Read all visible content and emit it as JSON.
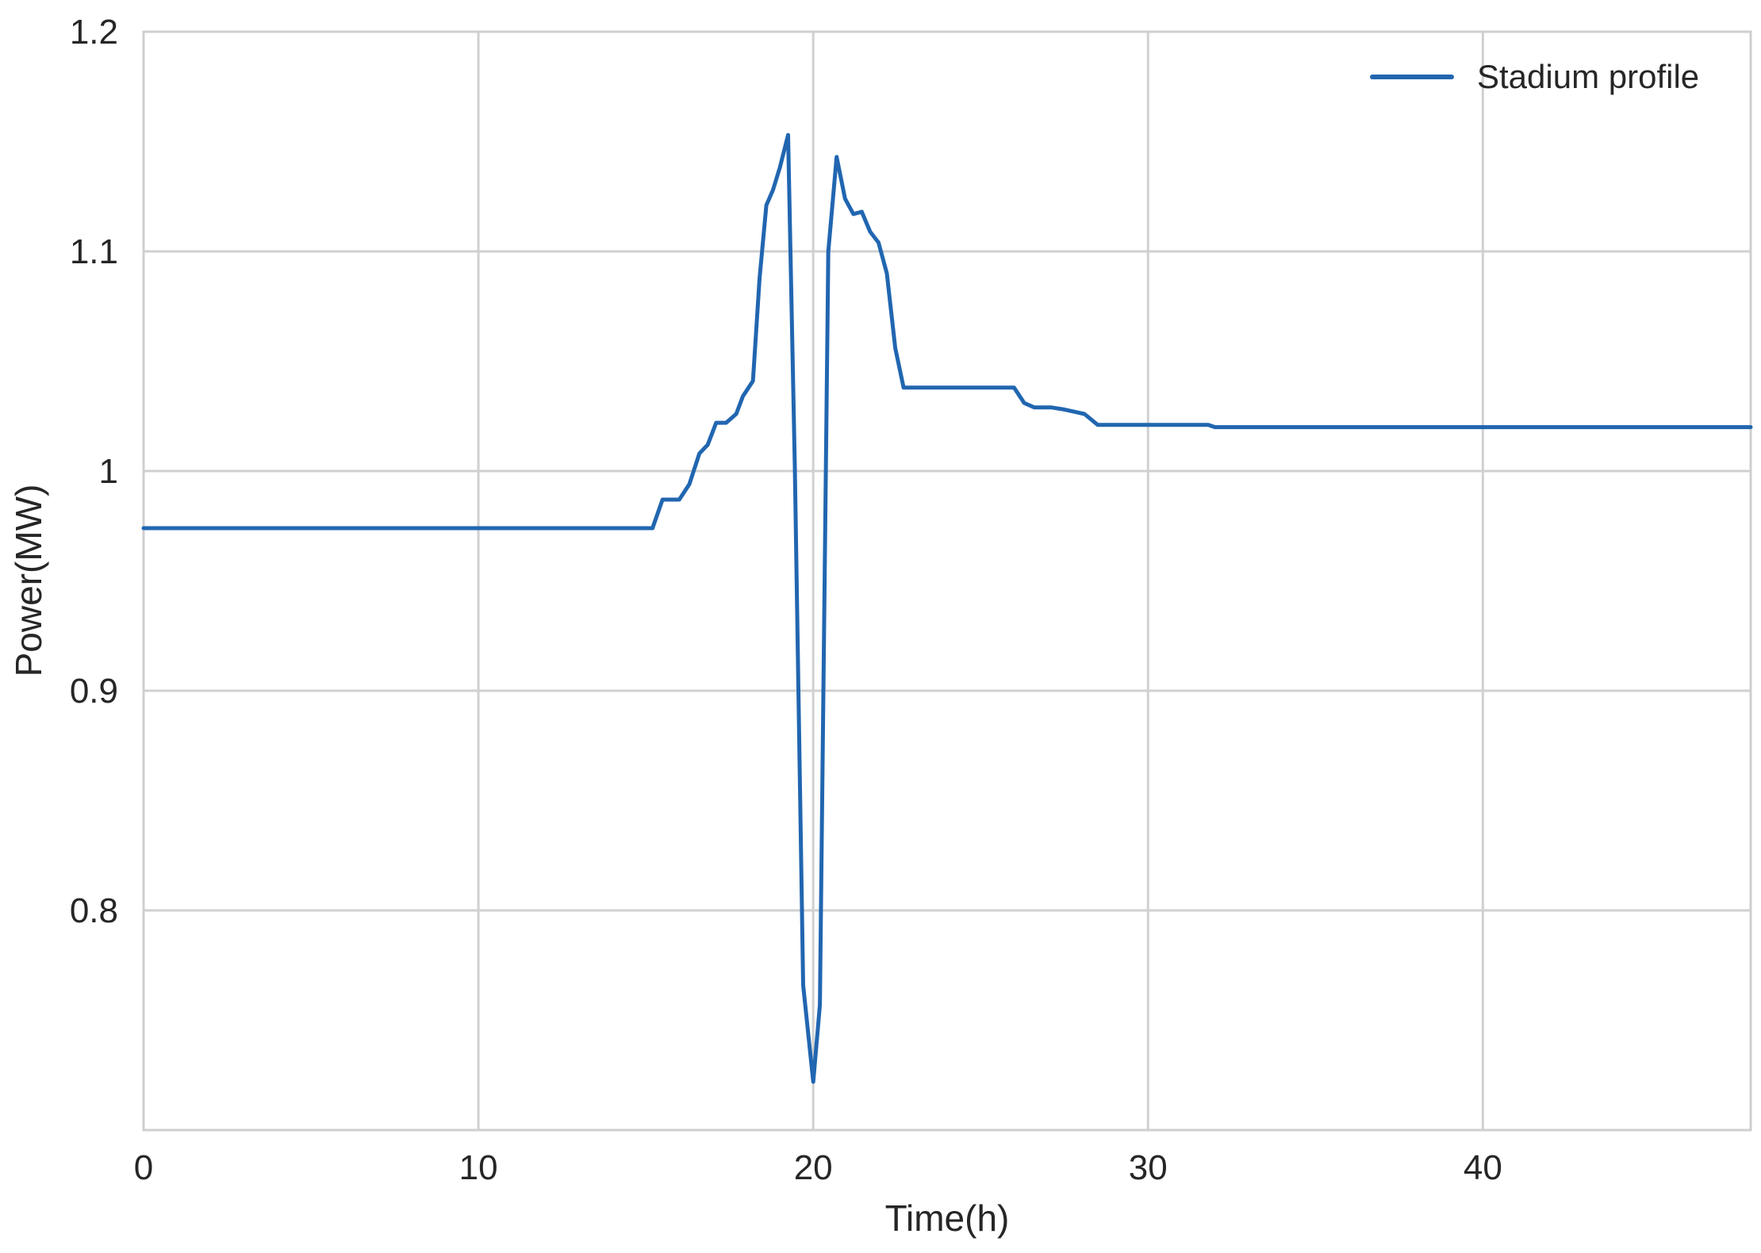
{
  "chart_data": {
    "type": "line",
    "title": "",
    "xlabel": "Time(h)",
    "ylabel": "Power(MW)",
    "xlim": [
      0,
      48
    ],
    "ylim": [
      0.7,
      1.2
    ],
    "xticks": [
      0,
      10,
      20,
      30,
      40
    ],
    "xtick_labels": [
      "0",
      "10",
      "20",
      "30",
      "40"
    ],
    "yticks": [
      0.8,
      0.9,
      1.0,
      1.1,
      1.2
    ],
    "ytick_labels": [
      "0.8",
      "0.9",
      "1",
      "1.1",
      "1.2"
    ],
    "grid": true,
    "legend_position": "top-right",
    "series": [
      {
        "name": "Stadium profile",
        "color": "#2166b0",
        "points": [
          [
            0,
            0.974
          ],
          [
            15.2,
            0.974
          ],
          [
            15.5,
            0.987
          ],
          [
            16.0,
            0.987
          ],
          [
            16.3,
            0.994
          ],
          [
            16.6,
            1.008
          ],
          [
            16.85,
            1.012
          ],
          [
            17.1,
            1.022
          ],
          [
            17.4,
            1.022
          ],
          [
            17.7,
            1.026
          ],
          [
            17.9,
            1.034
          ],
          [
            18.2,
            1.041
          ],
          [
            18.4,
            1.088
          ],
          [
            18.6,
            1.121
          ],
          [
            18.8,
            1.128
          ],
          [
            19.0,
            1.138
          ],
          [
            19.25,
            1.153
          ],
          [
            19.45,
            1.002
          ],
          [
            19.7,
            0.766
          ],
          [
            20.0,
            0.722
          ],
          [
            20.2,
            0.757
          ],
          [
            20.45,
            1.1
          ],
          [
            20.7,
            1.143
          ],
          [
            20.95,
            1.124
          ],
          [
            21.2,
            1.117
          ],
          [
            21.45,
            1.118
          ],
          [
            21.7,
            1.109
          ],
          [
            21.95,
            1.104
          ],
          [
            22.2,
            1.09
          ],
          [
            22.45,
            1.056
          ],
          [
            22.7,
            1.038
          ],
          [
            26.0,
            1.038
          ],
          [
            26.3,
            1.031
          ],
          [
            26.6,
            1.029
          ],
          [
            27.1,
            1.029
          ],
          [
            27.5,
            1.028
          ],
          [
            27.8,
            1.027
          ],
          [
            28.1,
            1.026
          ],
          [
            28.5,
            1.021
          ],
          [
            31.8,
            1.021
          ],
          [
            32.0,
            1.02
          ],
          [
            48,
            1.02
          ]
        ]
      }
    ]
  }
}
